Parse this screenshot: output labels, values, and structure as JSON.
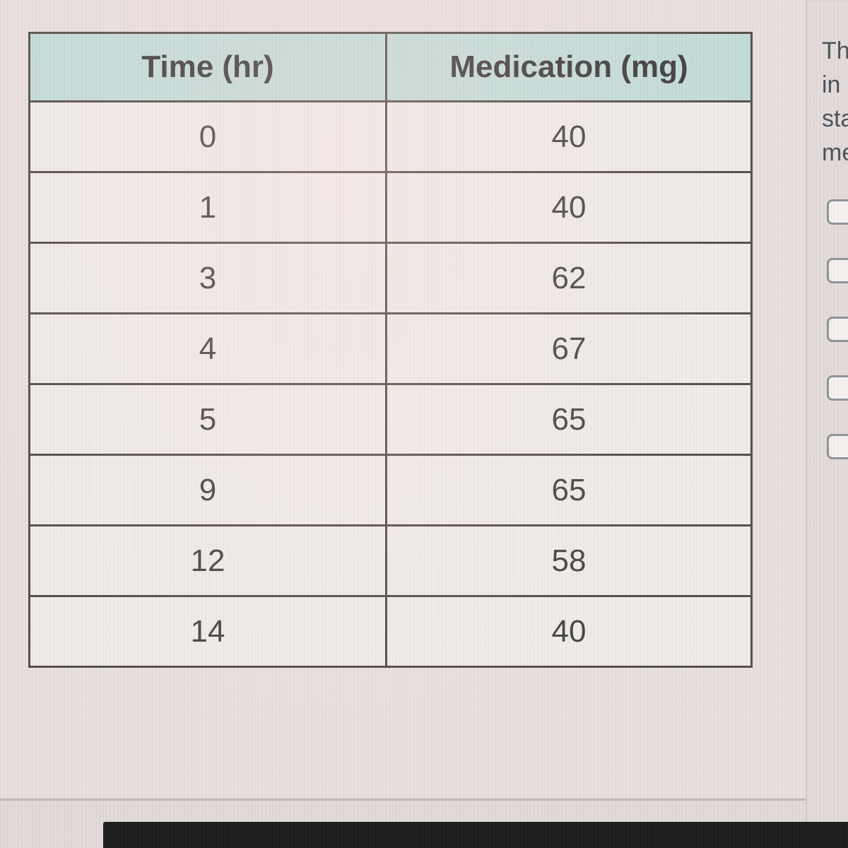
{
  "table": {
    "headers": [
      "Time (hr)",
      "Medication (mg)"
    ],
    "rows": [
      [
        "0",
        "40"
      ],
      [
        "1",
        "40"
      ],
      [
        "3",
        "62"
      ],
      [
        "4",
        "67"
      ],
      [
        "5",
        "65"
      ],
      [
        "9",
        "65"
      ],
      [
        "12",
        "58"
      ],
      [
        "14",
        "40"
      ]
    ]
  },
  "chart_data": {
    "type": "table",
    "title": "",
    "columns": [
      "Time (hr)",
      "Medication (mg)"
    ],
    "rows": [
      [
        0,
        40
      ],
      [
        1,
        40
      ],
      [
        3,
        62
      ],
      [
        4,
        67
      ],
      [
        5,
        65
      ],
      [
        9,
        65
      ],
      [
        12,
        58
      ],
      [
        14,
        40
      ]
    ]
  },
  "side_panel": {
    "text_lines": [
      "Th",
      "in",
      "sta",
      "me"
    ],
    "checkbox_count": 5
  },
  "colors": {
    "header_bg": "#c3dcda",
    "cell_bg": "#efecea",
    "border": "#554f47",
    "background": "#e8e0df",
    "bottom_bar": "#1d1d1d"
  }
}
